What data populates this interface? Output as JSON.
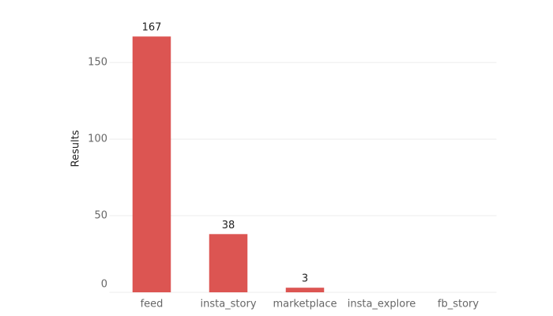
{
  "chart_data": {
    "type": "bar",
    "y_label": "Results",
    "categories": [
      "feed",
      "insta_story",
      "marketplace",
      "insta_explore",
      "fb_story"
    ],
    "values": [
      167,
      38,
      3,
      0,
      0
    ],
    "color": "#dc5552",
    "ylim": [
      0,
      180
    ],
    "yticks": [
      0,
      50,
      100,
      150
    ],
    "grid": true
  }
}
